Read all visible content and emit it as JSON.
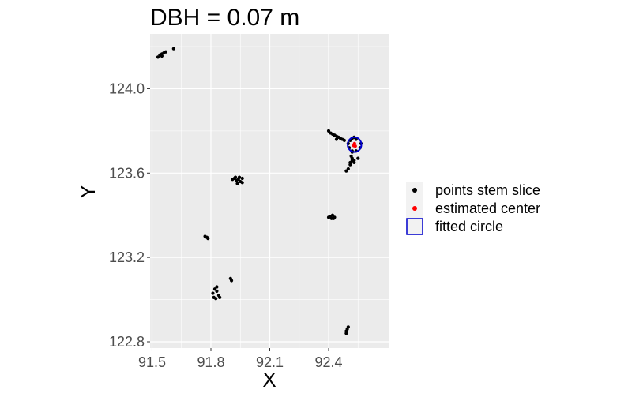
{
  "chart_data": {
    "type": "scatter",
    "title": "DBH = 0.07 m",
    "xlabel": "X",
    "ylabel": "Y",
    "xlim": [
      91.49,
      92.71
    ],
    "ylim": [
      122.77,
      124.26
    ],
    "xticks": [
      "91.5",
      "91.8",
      "92.1",
      "92.4"
    ],
    "xtick_values": [
      91.5,
      91.8,
      92.1,
      92.4
    ],
    "yticks": [
      "122.8",
      "123.2",
      "123.6",
      "124.0"
    ],
    "ytick_values": [
      122.8,
      123.2,
      123.6,
      124.0
    ],
    "grid": true,
    "legend_position": "right",
    "colors": {
      "panel": "#ebebeb",
      "grid": "#ffffff",
      "points": "#000000",
      "center": "#ff0000",
      "circle": "#0000cd"
    },
    "series": [
      {
        "name": "points stem slice",
        "marker": "point",
        "color": "#000000",
        "points": [
          [
            91.53,
            124.15
          ],
          [
            91.54,
            124.16
          ],
          [
            91.55,
            124.165
          ],
          [
            91.56,
            124.17
          ],
          [
            91.57,
            124.175
          ],
          [
            91.55,
            124.155
          ],
          [
            91.61,
            124.19
          ],
          [
            92.4,
            123.8
          ],
          [
            92.41,
            123.79
          ],
          [
            92.42,
            123.785
          ],
          [
            92.43,
            123.78
          ],
          [
            92.44,
            123.775
          ],
          [
            92.45,
            123.77
          ],
          [
            92.46,
            123.765
          ],
          [
            92.47,
            123.76
          ],
          [
            92.48,
            123.755
          ],
          [
            92.44,
            123.76
          ],
          [
            92.52,
            123.765
          ],
          [
            92.54,
            123.76
          ],
          [
            92.565,
            123.74
          ],
          [
            92.56,
            123.72
          ],
          [
            92.54,
            123.705
          ],
          [
            92.52,
            123.705
          ],
          [
            92.505,
            123.72
          ],
          [
            92.5,
            123.74
          ],
          [
            92.51,
            123.755
          ],
          [
            92.53,
            123.77
          ],
          [
            92.52,
            123.7
          ],
          [
            92.515,
            123.68
          ],
          [
            92.52,
            123.66
          ],
          [
            92.53,
            123.65
          ],
          [
            92.51,
            123.64
          ],
          [
            92.5,
            123.62
          ],
          [
            92.49,
            123.61
          ],
          [
            92.52,
            123.67
          ],
          [
            92.53,
            123.66
          ],
          [
            92.55,
            123.67
          ],
          [
            92.51,
            123.65
          ],
          [
            91.91,
            123.57
          ],
          [
            91.92,
            123.575
          ],
          [
            91.925,
            123.58
          ],
          [
            91.93,
            123.565
          ],
          [
            91.94,
            123.57
          ],
          [
            91.95,
            123.56
          ],
          [
            91.96,
            123.555
          ],
          [
            91.935,
            123.55
          ],
          [
            91.96,
            123.575
          ],
          [
            91.945,
            123.58
          ],
          [
            92.4,
            123.39
          ],
          [
            92.41,
            123.395
          ],
          [
            92.42,
            123.4
          ],
          [
            92.43,
            123.39
          ],
          [
            92.425,
            123.385
          ],
          [
            92.415,
            123.385
          ],
          [
            91.77,
            123.3
          ],
          [
            91.78,
            123.295
          ],
          [
            91.785,
            123.29
          ],
          [
            91.9,
            123.1
          ],
          [
            91.905,
            123.09
          ],
          [
            91.81,
            123.03
          ],
          [
            91.82,
            123.05
          ],
          [
            91.83,
            123.06
          ],
          [
            91.815,
            123.01
          ],
          [
            91.825,
            123.005
          ],
          [
            91.84,
            123.02
          ],
          [
            91.845,
            123.01
          ],
          [
            91.83,
            123.04
          ],
          [
            92.49,
            122.85
          ],
          [
            92.495,
            122.86
          ],
          [
            92.5,
            122.87
          ],
          [
            92.49,
            122.84
          ]
        ]
      },
      {
        "name": "estimated center",
        "marker": "point",
        "color": "#ff0000",
        "points": [
          [
            92.528,
            123.73
          ],
          [
            92.532,
            123.74
          ],
          [
            92.536,
            123.728
          ]
        ]
      },
      {
        "name": "fitted circle",
        "marker": "circle",
        "color": "#0000cd",
        "center": [
          92.532,
          123.735
        ],
        "diameter": 0.07
      }
    ]
  }
}
